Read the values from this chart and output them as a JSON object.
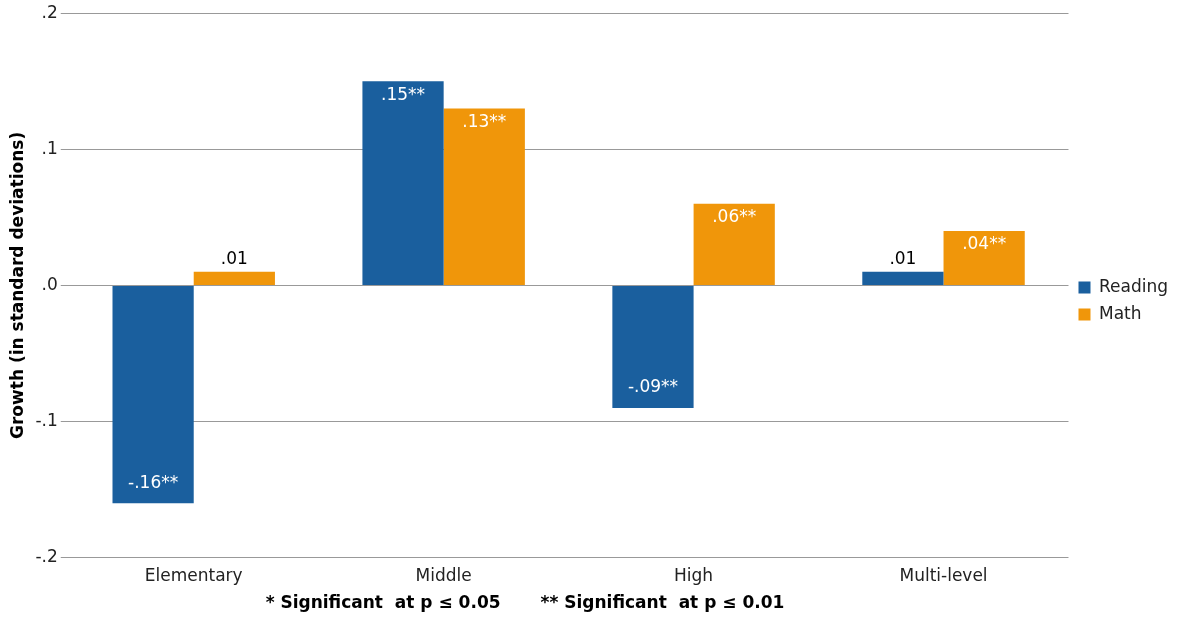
{
  "chart_data": {
    "type": "bar",
    "ylabel": "Growth (in standard deviations)",
    "categories": [
      "Elementary",
      "Middle",
      "High",
      "Multi-level"
    ],
    "series": [
      {
        "name": "Reading",
        "color": "#1a5f9e",
        "values": [
          -0.16,
          0.15,
          -0.09,
          0.01
        ],
        "value_labels": [
          "-.16**",
          ".15**",
          "-.09**",
          ".01"
        ]
      },
      {
        "name": "Math",
        "color": "#f0960a",
        "values": [
          0.01,
          0.13,
          0.06,
          0.04
        ],
        "value_labels": [
          ".01",
          ".13**",
          ".06**",
          ".04**"
        ]
      }
    ],
    "ylim": [
      -0.2,
      0.2
    ],
    "yticks": [
      {
        "value": -0.2,
        "label": "-.2"
      },
      {
        "value": -0.1,
        "label": "-.1"
      },
      {
        "value": 0,
        "label": ".0"
      },
      {
        "value": 0.1,
        "label": ".1"
      },
      {
        "value": 0.2,
        "label": ".2"
      }
    ],
    "grid": "y",
    "legend": "right",
    "annotations": [
      "* Significant  at p ≤ 0.05",
      "** Significant  at p ≤ 0.01"
    ]
  }
}
